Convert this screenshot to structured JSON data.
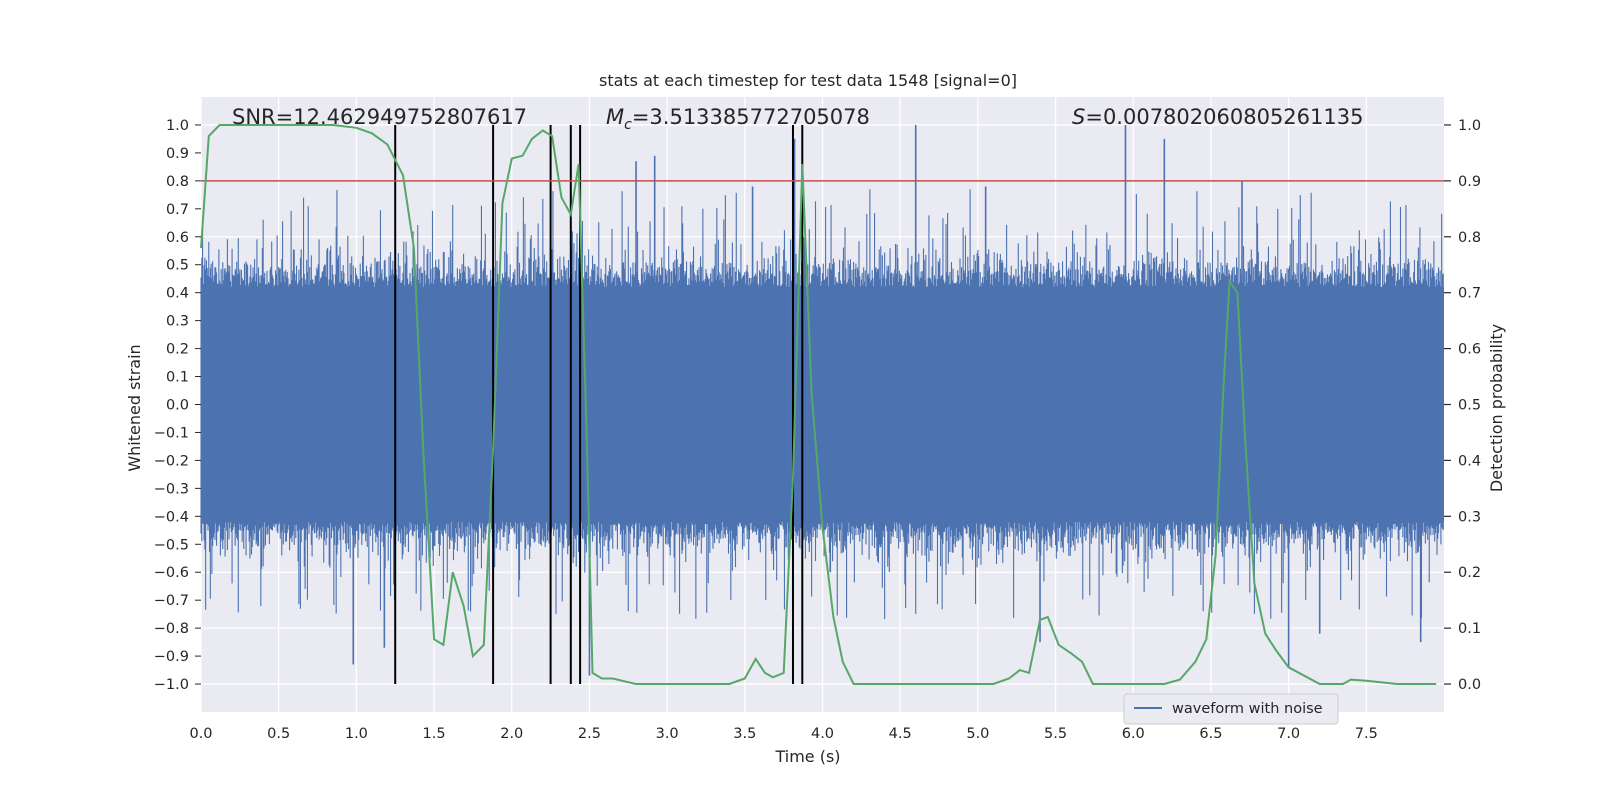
{
  "chart_data": {
    "type": "line",
    "title": "stats at each timestep for test data 1548 [signal=0]",
    "xlabel": "Time (s)",
    "ylabel": "Whitened strain",
    "y2label": "Detection probability",
    "xlim": [
      0.0,
      8.0
    ],
    "ylim": [
      -1.1,
      1.1
    ],
    "y2lim": [
      -0.05,
      1.05
    ],
    "xticks": [
      "0.0",
      "0.5",
      "1.0",
      "1.5",
      "2.0",
      "2.5",
      "3.0",
      "3.5",
      "4.0",
      "4.5",
      "5.0",
      "5.5",
      "6.0",
      "6.5",
      "7.0",
      "7.5"
    ],
    "yticks": [
      "1.0",
      "0.9",
      "0.8",
      "0.7",
      "0.6",
      "0.5",
      "0.4",
      "0.3",
      "0.2",
      "0.1",
      "0.0",
      "−0.1",
      "−0.2",
      "−0.3",
      "−0.4",
      "−0.5",
      "−0.6",
      "−0.7",
      "−0.8",
      "−0.9",
      "−1.0"
    ],
    "y2ticks": [
      "1.0",
      "0.9",
      "0.8",
      "0.7",
      "0.6",
      "0.5",
      "0.4",
      "0.3",
      "0.2",
      "0.1",
      "0.0"
    ],
    "annotations": {
      "snr": "SNR=12.462949752807617",
      "mc_symbol": "M",
      "mc_sub": "c",
      "mc_value": "=3.513385772705078",
      "s_symbol": "S",
      "s_value": "=0.007802060805261135"
    },
    "threshold": {
      "value": 0.9,
      "axis": "y2",
      "color": "#c44e52"
    },
    "vertical_lines": [
      1.25,
      1.88,
      2.25,
      2.38,
      2.44,
      3.81,
      3.87
    ],
    "legend": {
      "label": "waveform with noise",
      "position": "lower-right"
    },
    "series": [
      {
        "name": "waveform with noise",
        "axis": "y",
        "color": "#4c72b0",
        "style": "dense noise, about ±0.4 core with spikes near ±0.6 to ±1.0",
        "peaks": [
          {
            "x": 0.98,
            "y": -0.93
          },
          {
            "x": 1.18,
            "y": -0.87
          },
          {
            "x": 2.5,
            "y": -0.97
          },
          {
            "x": 2.8,
            "y": 0.87
          },
          {
            "x": 2.92,
            "y": 0.89
          },
          {
            "x": 3.55,
            "y": 0.78
          },
          {
            "x": 3.82,
            "y": 0.95
          },
          {
            "x": 4.6,
            "y": 1.0
          },
          {
            "x": 5.05,
            "y": 0.78
          },
          {
            "x": 5.95,
            "y": 1.0
          },
          {
            "x": 6.2,
            "y": 0.95
          },
          {
            "x": 6.7,
            "y": 0.8
          },
          {
            "x": 7.0,
            "y": -0.94
          },
          {
            "x": 7.2,
            "y": -0.82
          },
          {
            "x": 7.85,
            "y": -0.85
          },
          {
            "x": 5.4,
            "y": -0.85
          },
          {
            "x": 4.05,
            "y": -0.6
          }
        ]
      },
      {
        "name": "detection probability",
        "axis": "y2",
        "color": "#55a868",
        "x": [
          0.0,
          0.05,
          0.12,
          0.3,
          0.5,
          0.7,
          0.85,
          1.0,
          1.1,
          1.2,
          1.3,
          1.37,
          1.43,
          1.5,
          1.56,
          1.62,
          1.69,
          1.75,
          1.82,
          1.88,
          1.94,
          2.0,
          2.07,
          2.13,
          2.2,
          2.26,
          2.32,
          2.38,
          2.43,
          2.48,
          2.52,
          2.58,
          2.65,
          2.8,
          3.0,
          3.2,
          3.4,
          3.5,
          3.57,
          3.63,
          3.68,
          3.75,
          3.81,
          3.87,
          3.93,
          4.0,
          4.07,
          4.13,
          4.2,
          4.3,
          4.5,
          4.7,
          5.0,
          5.1,
          5.2,
          5.27,
          5.33,
          5.4,
          5.45,
          5.52,
          5.6,
          5.67,
          5.74,
          5.9,
          6.2,
          6.3,
          6.4,
          6.47,
          6.53,
          6.58,
          6.62,
          6.67,
          6.72,
          6.78,
          6.85,
          6.92,
          7.0,
          7.2,
          7.35,
          7.4,
          7.5,
          7.7,
          7.95
        ],
        "y": [
          0.78,
          0.98,
          1.0,
          1.0,
          1.0,
          1.0,
          1.0,
          0.995,
          0.985,
          0.965,
          0.91,
          0.78,
          0.42,
          0.08,
          0.07,
          0.2,
          0.14,
          0.05,
          0.07,
          0.42,
          0.86,
          0.94,
          0.945,
          0.975,
          0.99,
          0.98,
          0.87,
          0.84,
          0.93,
          0.47,
          0.02,
          0.01,
          0.01,
          0.0,
          0.0,
          0.0,
          0.0,
          0.01,
          0.045,
          0.02,
          0.012,
          0.02,
          0.37,
          0.93,
          0.52,
          0.28,
          0.12,
          0.04,
          0.0,
          0.0,
          0.0,
          0.0,
          0.0,
          0.0,
          0.01,
          0.025,
          0.02,
          0.115,
          0.12,
          0.07,
          0.055,
          0.04,
          0.0,
          0.0,
          0.0,
          0.008,
          0.04,
          0.08,
          0.23,
          0.53,
          0.72,
          0.7,
          0.44,
          0.18,
          0.09,
          0.06,
          0.03,
          0.0,
          0.0,
          0.008,
          0.006,
          0.0,
          0.0
        ]
      }
    ]
  }
}
